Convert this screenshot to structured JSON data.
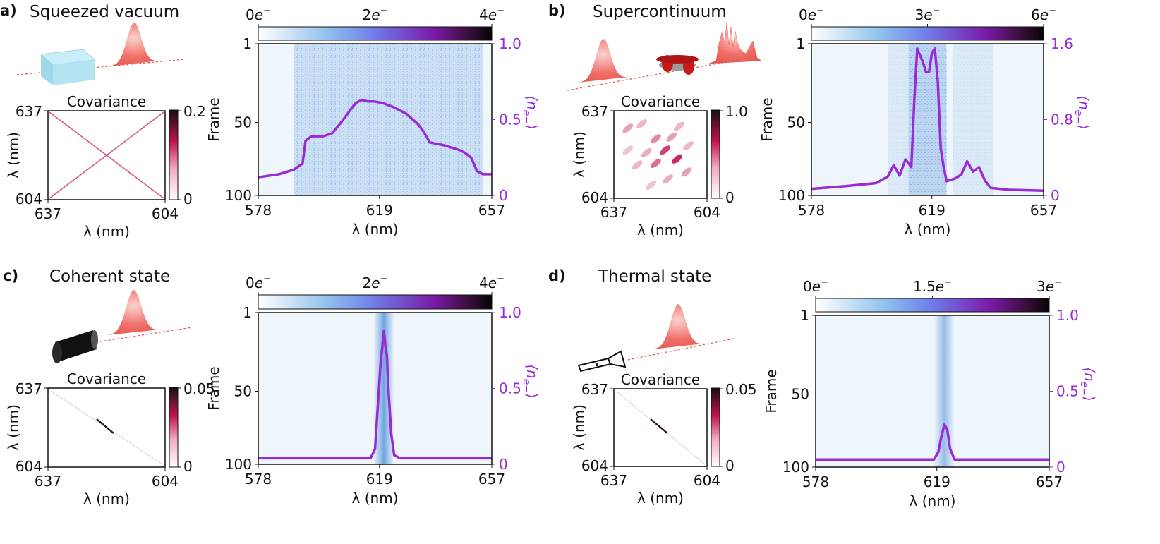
{
  "colors": {
    "purple": "#9a2ad6",
    "heat_background": "#eef5fb",
    "heat_blue": "#5b96dc",
    "pulse_red": "#f0706a",
    "cov_red": "#c0144a"
  },
  "panels": [
    {
      "id": "a",
      "label": "a)",
      "title": "Squeezed vacuum",
      "illustration": "crystal-icon",
      "cov_title": "Covariance",
      "cov_pattern": "cross",
      "cov_cbar_ticks": [
        "0.2",
        "0"
      ],
      "cov_y_ticks": [
        "637",
        "604"
      ],
      "cov_x_ticks": [
        "637",
        "604"
      ],
      "cov_x_label": "λ (nm)",
      "cov_y_label": "λ (nm)",
      "cbar_ticks": [
        "0",
        "2",
        "4"
      ],
      "cbar_unit": "e",
      "cbar_sup": "−",
      "frame_ticks": [
        "1",
        "50",
        "100"
      ],
      "frame_label": "Frame",
      "right_ticks": [
        "1.0",
        "0.5",
        "0"
      ],
      "right_label": "⟨n",
      "right_label_sub": "e−",
      "right_label_close": "⟩",
      "x_ticks": [
        "578",
        "619",
        "657"
      ],
      "x_label": "λ (nm)"
    },
    {
      "id": "b",
      "label": "b)",
      "title": "Supercontinuum",
      "illustration": "fiber-spool-icon",
      "cov_title": "Covariance",
      "cov_pattern": "blobs",
      "cov_cbar_ticks": [
        "1.0",
        "0"
      ],
      "cov_y_ticks": [
        "637",
        "604"
      ],
      "cov_x_ticks": [
        "637",
        "604"
      ],
      "cov_x_label": "λ (nm)",
      "cov_y_label": "λ (nm)",
      "cbar_ticks": [
        "0",
        "3",
        "6"
      ],
      "cbar_unit": "e",
      "cbar_sup": "−",
      "frame_ticks": [
        "1",
        "50",
        "100"
      ],
      "frame_label": "Frame",
      "right_ticks": [
        "1.6",
        "0.8",
        "0"
      ],
      "right_label": "⟨n",
      "right_label_sub": "e−",
      "right_label_close": "⟩",
      "x_ticks": [
        "578",
        "619",
        "657"
      ],
      "x_label": "λ (nm)"
    },
    {
      "id": "c",
      "label": "c)",
      "title": "Coherent state",
      "illustration": "laser-icon",
      "cov_title": "Covariance",
      "cov_pattern": "dot",
      "cov_cbar_ticks": [
        "0.05",
        "0"
      ],
      "cov_y_ticks": [
        "637",
        "604"
      ],
      "cov_x_ticks": [
        "637",
        "604"
      ],
      "cov_x_label": "λ (nm)",
      "cov_y_label": "λ (nm)",
      "cbar_ticks": [
        "0",
        "2",
        "4"
      ],
      "cbar_unit": "e",
      "cbar_sup": "−",
      "frame_ticks": [
        "1",
        "50",
        "100"
      ],
      "frame_label": "Frame",
      "right_ticks": [
        "1.0",
        "0.5",
        "0"
      ],
      "right_label": "⟨n",
      "right_label_sub": "e−",
      "right_label_close": "⟩",
      "x_ticks": [
        "578",
        "619",
        "657"
      ],
      "x_label": "λ (nm)"
    },
    {
      "id": "d",
      "label": "d)",
      "title": "Thermal state",
      "illustration": "flashlight-icon",
      "cov_title": "Covariance",
      "cov_pattern": "dot",
      "cov_cbar_ticks": [
        "0.05",
        "0"
      ],
      "cov_y_ticks": [
        "637",
        "604"
      ],
      "cov_x_ticks": [
        "637",
        "604"
      ],
      "cov_x_label": "λ (nm)",
      "cov_y_label": "λ (nm)",
      "cbar_ticks": [
        "0",
        "1.5",
        "3"
      ],
      "cbar_unit": "e",
      "cbar_sup": "−",
      "frame_ticks": [
        "1",
        "50",
        "100"
      ],
      "frame_label": "Frame",
      "right_ticks": [
        "1.0",
        "0.5",
        "0"
      ],
      "right_label": "⟨n",
      "right_label_sub": "e−",
      "right_label_close": "⟩",
      "x_ticks": [
        "578",
        "619",
        "657"
      ],
      "x_label": "λ (nm)"
    }
  ],
  "chart_data": [
    {
      "panel": "a",
      "type": "line",
      "title": "Squeezed vacuum",
      "xlabel": "λ (nm)",
      "ylabel": "⟨n_e−⟩",
      "xlim": [
        578,
        657
      ],
      "ylim": [
        0,
        1.0
      ],
      "x": [
        578,
        585,
        590,
        593,
        594,
        596,
        600,
        603,
        606,
        609,
        611,
        613,
        615,
        617,
        620,
        624,
        628,
        632,
        634,
        636,
        641,
        646,
        648,
        650,
        652,
        654,
        657
      ],
      "y": [
        0.12,
        0.14,
        0.17,
        0.21,
        0.36,
        0.39,
        0.39,
        0.41,
        0.48,
        0.56,
        0.61,
        0.63,
        0.62,
        0.62,
        0.61,
        0.58,
        0.54,
        0.47,
        0.42,
        0.35,
        0.33,
        0.3,
        0.28,
        0.25,
        0.16,
        0.14,
        0.14
      ]
    },
    {
      "panel": "b",
      "type": "line",
      "title": "Supercontinuum",
      "xlabel": "λ (nm)",
      "ylabel": "⟨n_e−⟩",
      "xlim": [
        578,
        657
      ],
      "ylim": [
        0,
        1.6
      ],
      "x": [
        578,
        590,
        600,
        604,
        606,
        608,
        610,
        612,
        613,
        614,
        616,
        617,
        618,
        619,
        620,
        621,
        622,
        623,
        624,
        627,
        629,
        631,
        633,
        635,
        637,
        639,
        645,
        657
      ],
      "y": [
        0.07,
        0.1,
        0.13,
        0.2,
        0.32,
        0.21,
        0.38,
        0.3,
        1.0,
        1.55,
        1.4,
        1.3,
        1.3,
        1.5,
        1.55,
        1.2,
        0.5,
        0.3,
        0.15,
        0.18,
        0.22,
        0.36,
        0.25,
        0.3,
        0.16,
        0.08,
        0.06,
        0.05
      ]
    },
    {
      "panel": "c",
      "type": "line",
      "title": "Coherent state",
      "xlabel": "λ (nm)",
      "ylabel": "⟨n_e−⟩",
      "xlim": [
        578,
        657
      ],
      "ylim": [
        0,
        1.0
      ],
      "x": [
        578,
        600,
        616,
        617.5,
        618.5,
        619.5,
        620,
        620.5,
        621,
        621.5,
        622,
        623,
        624,
        626,
        640,
        657
      ],
      "y": [
        0.04,
        0.04,
        0.04,
        0.1,
        0.4,
        0.7,
        0.78,
        0.88,
        0.78,
        0.72,
        0.5,
        0.2,
        0.06,
        0.04,
        0.04,
        0.04
      ]
    },
    {
      "panel": "d",
      "type": "line",
      "title": "Thermal state",
      "xlabel": "λ (nm)",
      "ylabel": "⟨n_e−⟩",
      "xlim": [
        578,
        657
      ],
      "ylim": [
        0,
        1.0
      ],
      "x": [
        578,
        600,
        618,
        619.5,
        620.5,
        621.5,
        622.5,
        623.5,
        625,
        627,
        640,
        657
      ],
      "y": [
        0.05,
        0.05,
        0.05,
        0.1,
        0.2,
        0.28,
        0.25,
        0.12,
        0.05,
        0.05,
        0.05,
        0.05
      ]
    }
  ]
}
